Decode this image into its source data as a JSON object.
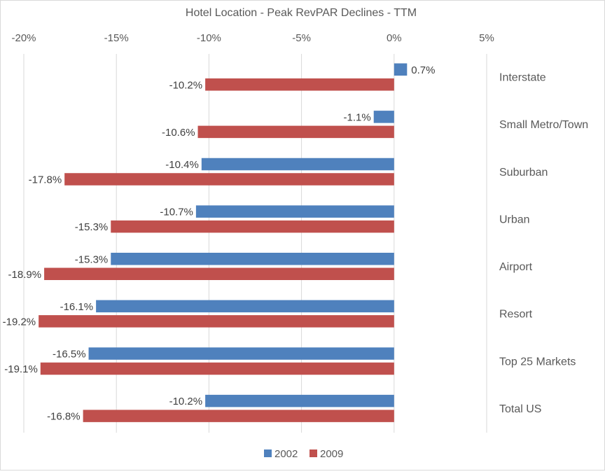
{
  "chart_data": {
    "type": "bar",
    "orientation": "horizontal",
    "title": "Hotel Location - Peak RevPAR Declines - TTM",
    "xlabel": "",
    "ylabel": "",
    "xlim": [
      -20,
      5
    ],
    "x_ticks": [
      -20,
      -15,
      -10,
      -5,
      0,
      5
    ],
    "x_tick_labels": [
      "-20%",
      "-15%",
      "-10%",
      "-5%",
      "0%",
      "5%"
    ],
    "x_axis_position": "top",
    "grid": "vertical",
    "legend_position": "bottom",
    "categories": [
      "Interstate",
      "Small Metro/Town",
      "Suburban",
      "Urban",
      "Airport",
      "Resort",
      "Top 25 Markets",
      "Total US"
    ],
    "series": [
      {
        "name": "2002",
        "color": "#4f81bd",
        "values": [
          0.7,
          -1.1,
          -10.4,
          -10.7,
          -15.3,
          -16.1,
          -16.5,
          -10.2
        ],
        "labels": [
          "0.7%",
          "-1.1%",
          "-10.4%",
          "-10.7%",
          "-15.3%",
          "-16.1%",
          "-16.5%",
          "-10.2%"
        ]
      },
      {
        "name": "2009",
        "color": "#c0504d",
        "values": [
          -10.2,
          -10.6,
          -17.8,
          -15.3,
          -18.9,
          -19.2,
          -19.1,
          -16.8
        ],
        "labels": [
          "-10.2%",
          "-10.6%",
          "-17.8%",
          "-15.3%",
          "-18.9%",
          "-19.2%",
          "-19.1%",
          "-16.8%"
        ]
      }
    ]
  }
}
